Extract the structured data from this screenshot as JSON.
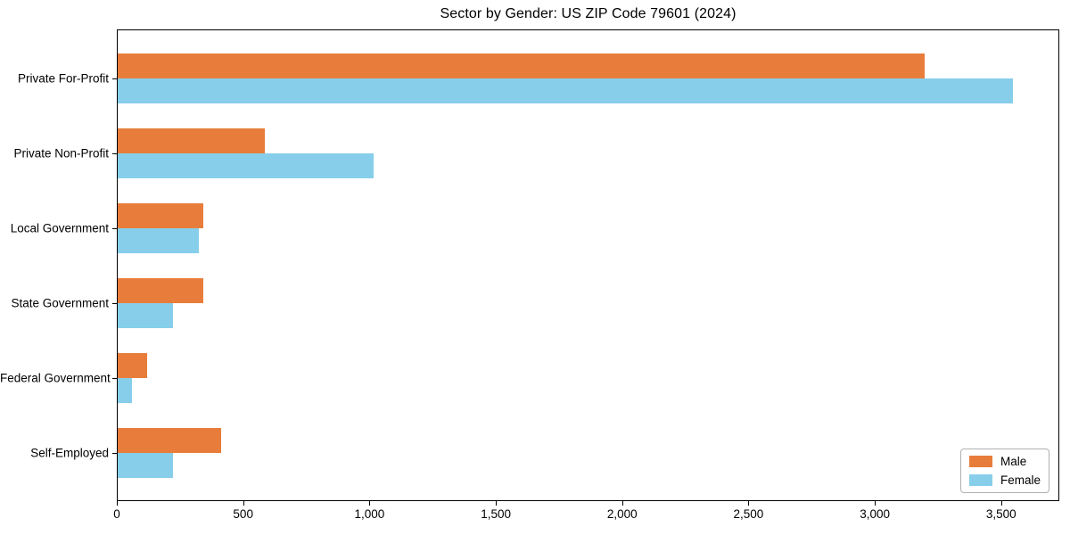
{
  "title": "Sector by Gender: US ZIP Code 79601 (2024)",
  "chart_data": {
    "type": "bar",
    "orientation": "horizontal",
    "title": "Sector by Gender: US ZIP Code 79601 (2024)",
    "categories": [
      "Private For-Profit",
      "Private Non-Profit",
      "Local Government",
      "State Government",
      "Federal Government",
      "Self-Employed"
    ],
    "series": [
      {
        "name": "Male",
        "color": "#e87d3b",
        "values": [
          3200,
          585,
          340,
          340,
          115,
          410
        ]
      },
      {
        "name": "Female",
        "color": "#87ceeb",
        "values": [
          3550,
          1015,
          320,
          220,
          55,
          220
        ]
      }
    ],
    "xlabel": "",
    "ylabel": "",
    "xlim": [
      0,
      3730
    ],
    "xticks": {
      "values": [
        0,
        500,
        1000,
        1500,
        2000,
        2500,
        3000,
        3500
      ],
      "labels": [
        "0",
        "500",
        "1,000",
        "1,500",
        "2,000",
        "2,500",
        "3,000",
        "3,500"
      ]
    },
    "grid": false,
    "legend": {
      "position": "lower-right",
      "entries": [
        "Male",
        "Female"
      ]
    }
  },
  "colors": {
    "male": "#e87d3b",
    "female": "#87ceeb",
    "axis": "#000000",
    "legend_border": "#b0b0b0",
    "background": "#ffffff"
  }
}
